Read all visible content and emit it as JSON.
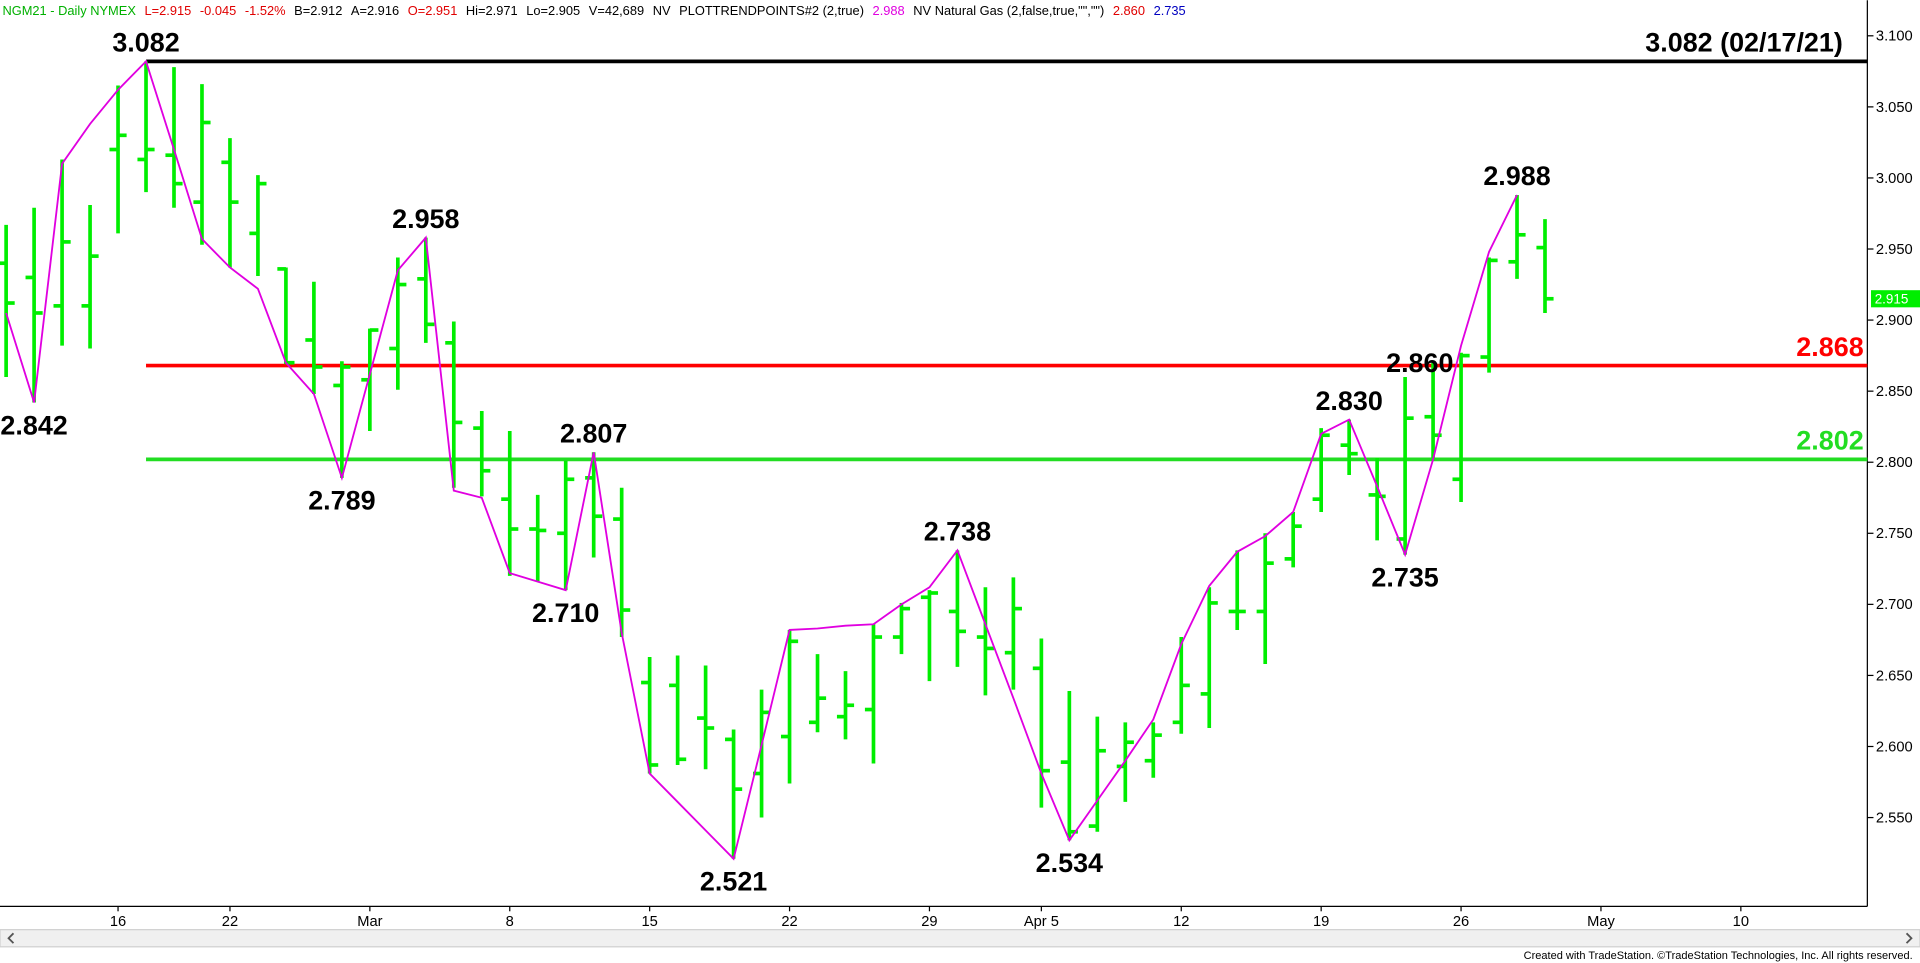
{
  "header": [
    {
      "text": "NGM21 - Daily  NYMEX",
      "color": "#00b000"
    },
    {
      "text": "L=2.915",
      "color": "#e00000"
    },
    {
      "text": "-0.045",
      "color": "#e00000"
    },
    {
      "text": "-1.52%",
      "color": "#e00000"
    },
    {
      "text": "B=2.912",
      "color": "#000000"
    },
    {
      "text": "A=2.916",
      "color": "#000000"
    },
    {
      "text": "O=2.951",
      "color": "#e00000"
    },
    {
      "text": "Hi=2.971",
      "color": "#000000"
    },
    {
      "text": "Lo=2.905",
      "color": "#000000"
    },
    {
      "text": "V=42,689",
      "color": "#000000"
    },
    {
      "text": "NV",
      "color": "#000000"
    },
    {
      "text": "PLOTTRENDPOINTS#2 (2,true)",
      "color": "#000000"
    },
    {
      "text": "2.988",
      "color": "#e000e0"
    },
    {
      "text": "NV Natural Gas (2,false,true,\"\",\"\")",
      "color": "#000000"
    },
    {
      "text": "2.860",
      "color": "#e00000"
    },
    {
      "text": "2.735",
      "color": "#0000c0"
    }
  ],
  "chart_data": {
    "type": "ohlc",
    "color": "#00ee00",
    "categories": [
      null,
      null,
      null,
      null,
      "16",
      null,
      null,
      null,
      "22",
      null,
      null,
      null,
      null,
      "Mar",
      null,
      null,
      null,
      null,
      "8",
      null,
      null,
      null,
      null,
      "15",
      null,
      null,
      null,
      null,
      "22",
      null,
      null,
      null,
      null,
      "29",
      null,
      null,
      null,
      "Apr 5",
      null,
      null,
      null,
      null,
      "12",
      null,
      null,
      null,
      null,
      "19",
      null,
      null,
      null,
      null,
      "26",
      null,
      null,
      null,
      null,
      "May",
      null,
      null,
      null,
      null,
      "10",
      null,
      null,
      null,
      null
    ],
    "open": [
      2.94,
      2.93,
      2.91,
      2.91,
      3.02,
      3.013,
      3.016,
      2.983,
      3.011,
      2.961,
      2.936,
      2.886,
      2.854,
      2.858,
      2.88,
      2.929,
      2.884,
      2.824,
      2.774,
      2.753,
      2.75,
      2.789,
      2.76,
      2.645,
      2.643,
      2.62,
      2.605,
      2.581,
      2.607,
      2.617,
      2.621,
      2.626,
      2.677,
      2.705,
      2.695,
      2.677,
      2.666,
      2.655,
      2.589,
      2.544,
      2.586,
      2.59,
      2.617,
      2.637,
      2.695,
      2.695,
      2.732,
      2.774,
      2.812,
      2.777,
      2.746,
      2.832,
      2.788,
      2.874,
      2.941,
      2.951,
      null,
      null,
      null,
      null,
      null,
      null,
      null,
      null,
      null,
      null,
      null
    ],
    "high": [
      2.967,
      2.979,
      3.013,
      2.981,
      3.065,
      3.082,
      3.078,
      3.066,
      3.028,
      3.002,
      2.937,
      2.927,
      2.871,
      2.894,
      2.944,
      2.958,
      2.899,
      2.836,
      2.822,
      2.777,
      2.801,
      2.807,
      2.782,
      2.663,
      2.664,
      2.657,
      2.612,
      2.64,
      2.682,
      2.665,
      2.653,
      2.686,
      2.701,
      2.71,
      2.738,
      2.712,
      2.719,
      2.676,
      2.639,
      2.621,
      2.617,
      2.617,
      2.677,
      2.712,
      2.738,
      2.75,
      2.765,
      2.824,
      2.83,
      2.803,
      2.86,
      2.87,
      2.877,
      2.944,
      2.988,
      2.971,
      null,
      null,
      null,
      null,
      null,
      null,
      null,
      null,
      null,
      null,
      null
    ],
    "low": [
      2.86,
      2.842,
      2.882,
      2.88,
      2.961,
      2.99,
      2.979,
      2.953,
      2.937,
      2.931,
      2.869,
      2.848,
      2.789,
      2.822,
      2.851,
      2.884,
      2.782,
      2.776,
      2.72,
      2.716,
      2.71,
      2.733,
      2.677,
      2.581,
      2.587,
      2.584,
      2.521,
      2.55,
      2.574,
      2.61,
      2.605,
      2.588,
      2.665,
      2.646,
      2.656,
      2.636,
      2.64,
      2.557,
      2.534,
      2.54,
      2.561,
      2.578,
      2.609,
      2.613,
      2.682,
      2.658,
      2.726,
      2.765,
      2.791,
      2.745,
      2.735,
      2.803,
      2.772,
      2.863,
      2.929,
      2.905,
      null,
      null,
      null,
      null,
      null,
      null,
      null,
      null,
      null,
      null,
      null
    ],
    "close": [
      2.912,
      2.905,
      2.955,
      2.945,
      3.03,
      3.02,
      2.996,
      3.039,
      2.983,
      2.996,
      2.87,
      2.867,
      2.867,
      2.893,
      2.925,
      2.897,
      2.828,
      2.794,
      2.753,
      2.752,
      2.788,
      2.762,
      2.696,
      2.587,
      2.591,
      2.613,
      2.57,
      2.624,
      2.674,
      2.634,
      2.629,
      2.677,
      2.697,
      2.708,
      2.681,
      2.669,
      2.697,
      2.583,
      2.54,
      2.597,
      2.603,
      2.608,
      2.643,
      2.701,
      2.695,
      2.729,
      2.755,
      2.819,
      2.806,
      2.776,
      2.831,
      2.819,
      2.875,
      2.942,
      2.96,
      2.915,
      null,
      null,
      null,
      null,
      null,
      null,
      null,
      null,
      null,
      null,
      null
    ],
    "high_labels": [
      null,
      null,
      null,
      null,
      null,
      null,
      null,
      null,
      null,
      null,
      null,
      null,
      null,
      null,
      null,
      null,
      null,
      null,
      null,
      null,
      null,
      null,
      null,
      null,
      null,
      null,
      null,
      null,
      null,
      null,
      null,
      null,
      null,
      null,
      null,
      null,
      null,
      null,
      null,
      null,
      null,
      null,
      null,
      null,
      null,
      null,
      null,
      null,
      null,
      null,
      "2.860",
      null,
      null,
      null,
      null,
      null,
      null,
      null,
      null,
      null,
      null,
      null,
      null,
      null,
      null,
      null,
      null
    ],
    "trend": {
      "color": "#e000e0",
      "values": [
        2.905,
        2.842,
        3.01,
        3.038,
        3.062,
        3.082,
        3.02,
        2.957,
        2.937,
        2.922,
        2.87,
        2.848,
        2.789,
        2.862,
        2.935,
        2.958,
        2.78,
        2.775,
        2.722,
        2.716,
        2.71,
        2.807,
        2.68,
        2.581,
        2.561,
        2.541,
        2.521,
        2.601,
        2.682,
        2.683,
        2.685,
        2.686,
        2.7,
        2.712,
        2.738,
        2.686,
        2.634,
        2.581,
        2.534,
        2.562,
        2.59,
        2.619,
        2.672,
        2.713,
        2.737,
        2.748,
        2.765,
        2.82,
        2.83,
        2.783,
        2.735,
        2.802,
        2.882,
        2.948,
        2.988,
        null,
        null,
        null,
        null,
        null,
        null,
        null,
        null,
        null,
        null,
        null,
        null
      ],
      "value_labels": [
        null,
        "2.842",
        null,
        null,
        null,
        "3.082",
        null,
        null,
        null,
        null,
        null,
        null,
        "2.789",
        null,
        null,
        "2.958",
        null,
        null,
        null,
        null,
        "2.710",
        "2.807",
        null,
        null,
        null,
        null,
        "2.521",
        null,
        null,
        null,
        null,
        null,
        null,
        null,
        "2.738",
        null,
        null,
        null,
        "2.534",
        null,
        null,
        null,
        null,
        null,
        null,
        null,
        null,
        null,
        "2.830",
        null,
        "2.735",
        null,
        null,
        null,
        "2.988",
        null,
        null,
        null,
        null,
        null,
        null,
        null,
        null,
        null,
        null,
        null,
        null
      ]
    },
    "levels": [
      {
        "value": 3.082,
        "label": "3.082 (02/17/21)",
        "color": "#000000"
      },
      {
        "value": 2.868,
        "label": "2.868",
        "color": "#ff0000"
      },
      {
        "value": 2.802,
        "label": "2.802",
        "color": "#22dd22"
      }
    ],
    "last_price": {
      "value": 2.915,
      "label": "2.915",
      "color": "#00ee00"
    },
    "ylim": [
      2.4875,
      3.125
    ],
    "yticks": [
      {
        "value": 2.55,
        "label": "2.550"
      },
      {
        "value": 2.6,
        "label": "2.600"
      },
      {
        "value": 2.65,
        "label": "2.650"
      },
      {
        "value": 2.7,
        "label": "2.700"
      },
      {
        "value": 2.75,
        "label": "2.750"
      },
      {
        "value": 2.8,
        "label": "2.800"
      },
      {
        "value": 2.85,
        "label": "2.850"
      },
      {
        "value": 2.9,
        "label": "2.900"
      },
      {
        "value": 2.95,
        "label": "2.950"
      },
      {
        "value": 3.0,
        "label": "3.000"
      },
      {
        "value": 3.05,
        "label": "3.050"
      },
      {
        "value": 3.1,
        "label": "3.100"
      }
    ],
    "grid": false
  },
  "footer": "Created with TradeStation. ©TradeStation Technologies, Inc. All rights reserved."
}
